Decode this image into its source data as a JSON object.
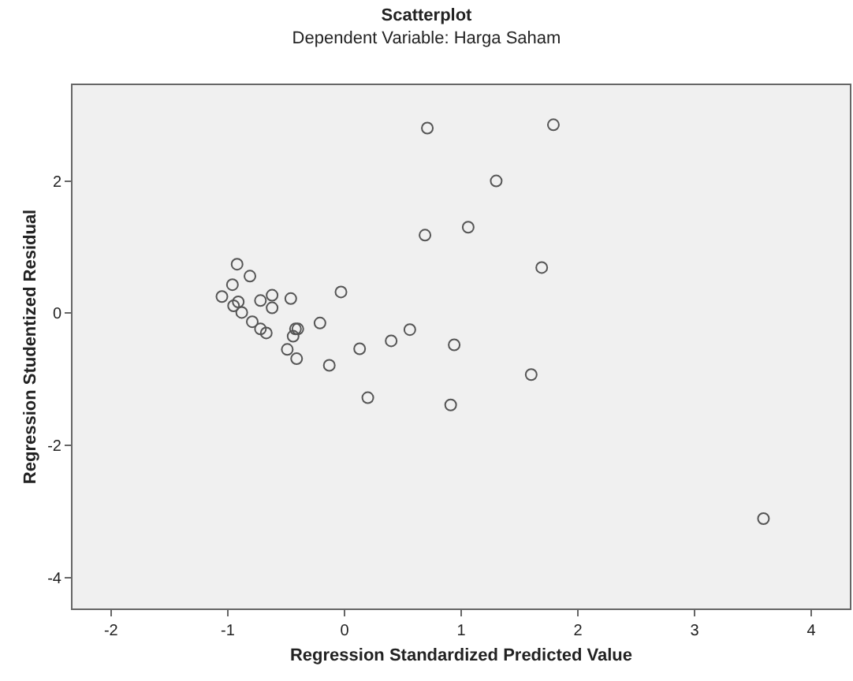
{
  "chart_data": {
    "type": "scatter",
    "title": "Scatterplot",
    "subtitle": "Dependent Variable: Harga Saham",
    "xlabel": "Regression Standardized Predicted Value",
    "ylabel": "Regression Studentized Residual",
    "x": [
      0.71,
      1.79,
      1.3,
      0.69,
      1.06,
      1.69,
      -0.92,
      -0.81,
      -0.96,
      -1.05,
      -0.91,
      -0.95,
      -0.88,
      -0.72,
      -0.62,
      -0.62,
      -0.46,
      -0.03,
      -0.79,
      -0.72,
      -0.67,
      -0.42,
      -0.4,
      -0.21,
      -0.49,
      -0.41,
      -0.13,
      0.13,
      0.4,
      0.56,
      0.94,
      0.2,
      0.91,
      1.6,
      3.59,
      -0.44
    ],
    "values": [
      2.8,
      2.85,
      2.0,
      1.18,
      1.3,
      0.69,
      0.74,
      0.56,
      0.43,
      0.25,
      0.17,
      0.11,
      0.01,
      0.19,
      0.27,
      0.08,
      0.22,
      0.32,
      -0.13,
      -0.24,
      -0.3,
      -0.24,
      -0.24,
      -0.15,
      -0.55,
      -0.69,
      -0.79,
      -0.54,
      -0.42,
      -0.25,
      -0.48,
      -1.28,
      -1.39,
      -0.93,
      -3.11,
      -0.35
    ],
    "color": "#555555",
    "marker": "circle",
    "grid": false,
    "legend": false,
    "xlim": [
      -2.33,
      4.33
    ],
    "ylim": [
      -4.47,
      3.45
    ],
    "xticks": [
      -2,
      -1,
      0,
      1,
      2,
      3,
      4
    ],
    "yticks": [
      -4,
      -2,
      0,
      2
    ]
  }
}
